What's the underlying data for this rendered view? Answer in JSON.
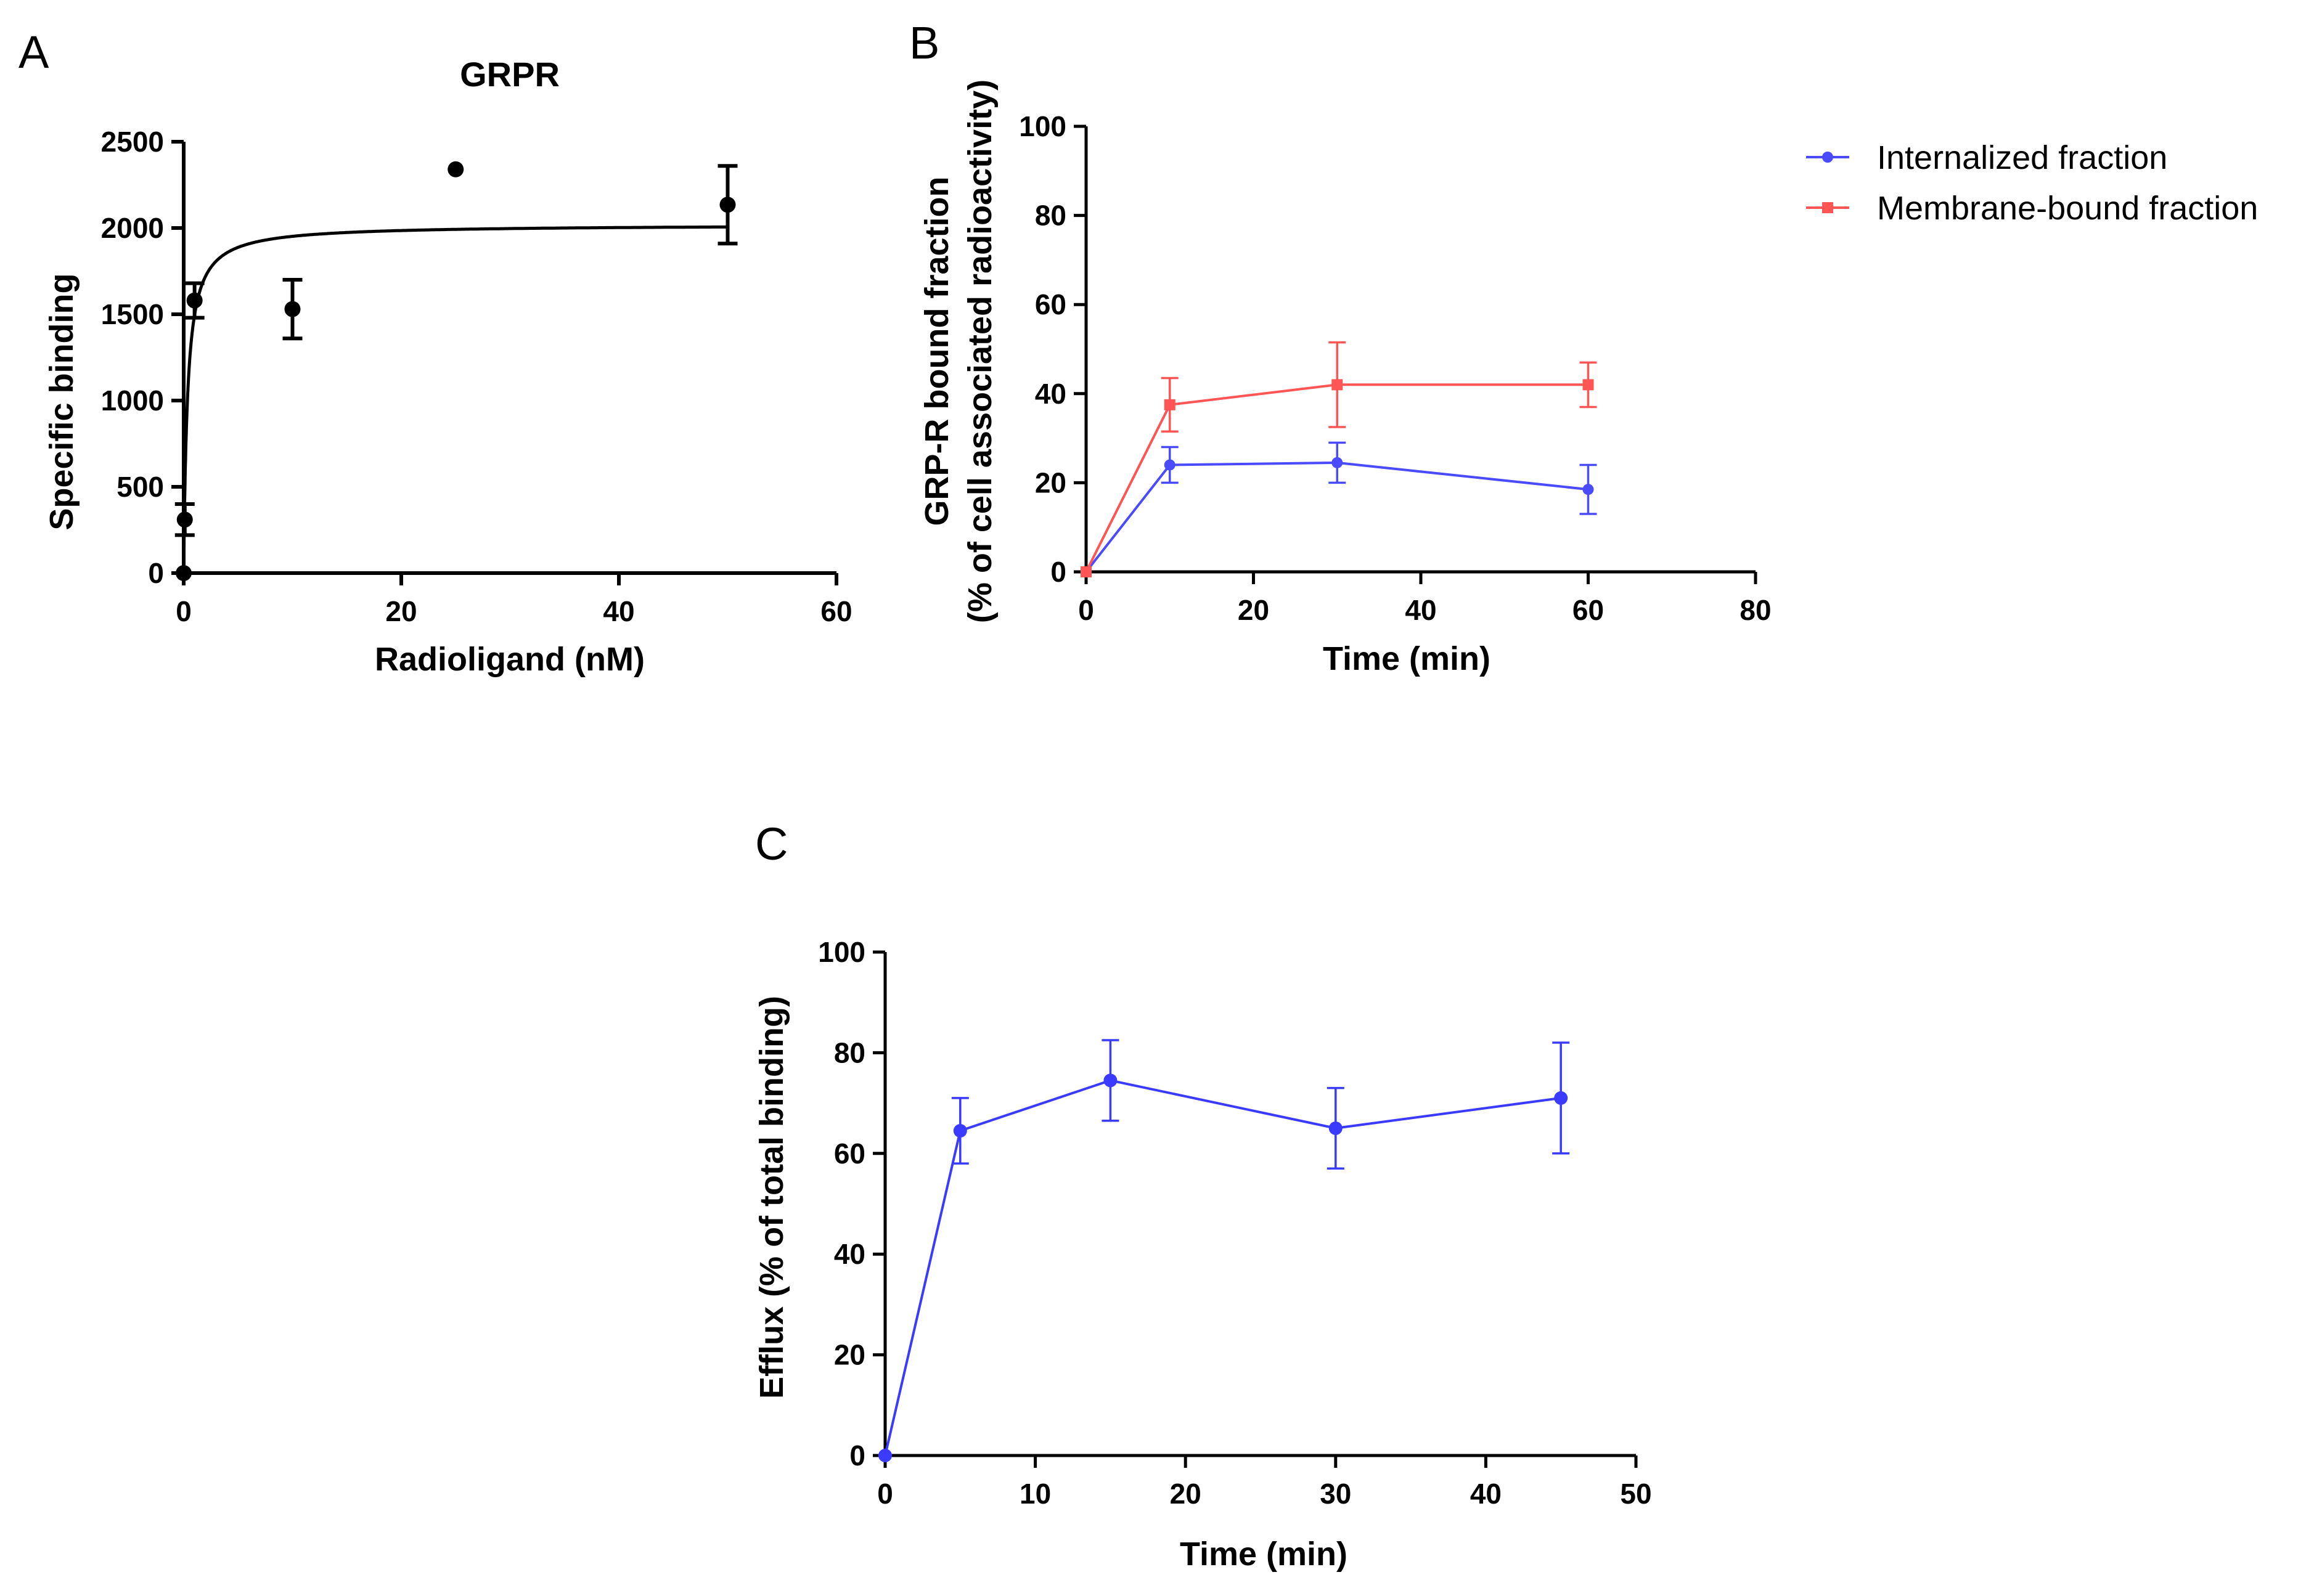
{
  "figure": {
    "panel_labels": [
      "A",
      "B",
      "C"
    ]
  },
  "chart_data": [
    {
      "panel": "A",
      "type": "scatter",
      "title": "GRPR",
      "xlabel": "Radioligand (nM)",
      "ylabel": "Specific binding",
      "xlim": [
        0,
        60
      ],
      "ylim": [
        0,
        2500
      ],
      "xticks": [
        0,
        20,
        40,
        60
      ],
      "yticks": [
        0,
        500,
        1000,
        1500,
        2000,
        2500
      ],
      "grid": false,
      "colors": {
        "series": "#000000"
      },
      "series": [
        {
          "points": [
            {
              "x": 0,
              "y": 0,
              "err": 0
            },
            {
              "x": 0.1,
              "y": 310,
              "err": 90
            },
            {
              "x": 1,
              "y": 1580,
              "err": 100
            },
            {
              "x": 10,
              "y": 1530,
              "err": 170
            },
            {
              "x": 25,
              "y": 2340,
              "err": 0
            },
            {
              "x": 50,
              "y": 2135,
              "err": 225
            }
          ]
        }
      ],
      "fit": {
        "model": "one-site saturation",
        "bmax": 2020,
        "kd": 0.35
      }
    },
    {
      "panel": "B",
      "type": "line",
      "title": "",
      "xlabel": "Time (min)",
      "ylabel": [
        "GRP-R bound fraction",
        "(% of cell associated radioactivity)"
      ],
      "xlim": [
        0,
        80
      ],
      "ylim": [
        0,
        100
      ],
      "xticks": [
        0,
        20,
        40,
        60,
        80
      ],
      "yticks": [
        0,
        20,
        40,
        60,
        80,
        100
      ],
      "grid": false,
      "legend_position": "top-right",
      "series": [
        {
          "name": "Internalized fraction",
          "color": "#4a4aff",
          "marker": "circle",
          "points": [
            {
              "x": 0,
              "y": 0,
              "err": 0
            },
            {
              "x": 10,
              "y": 24,
              "err": 4
            },
            {
              "x": 30,
              "y": 24.5,
              "err": 4.5
            },
            {
              "x": 60,
              "y": 18.5,
              "err": 5.5
            }
          ]
        },
        {
          "name": "Membrane-bound fraction",
          "color": "#ff5555",
          "marker": "square",
          "points": [
            {
              "x": 0,
              "y": 0,
              "err": 0
            },
            {
              "x": 10,
              "y": 37.5,
              "err": 6
            },
            {
              "x": 30,
              "y": 42,
              "err": 9.5
            },
            {
              "x": 60,
              "y": 42,
              "err": 5
            }
          ]
        }
      ]
    },
    {
      "panel": "C",
      "type": "line",
      "title": "",
      "xlabel": "Time (min)",
      "ylabel": "Efflux (% of total binding)",
      "xlim": [
        0,
        50
      ],
      "ylim": [
        0,
        100
      ],
      "xticks": [
        0,
        10,
        20,
        30,
        40,
        50
      ],
      "yticks": [
        0,
        20,
        40,
        60,
        80,
        100
      ],
      "grid": false,
      "series": [
        {
          "color": "#3b3bff",
          "marker": "circle",
          "points": [
            {
              "x": 0,
              "y": 0,
              "err": 0
            },
            {
              "x": 5,
              "y": 64.5,
              "err": 6.5
            },
            {
              "x": 15,
              "y": 74.5,
              "err": 8
            },
            {
              "x": 30,
              "y": 65,
              "err": 8
            },
            {
              "x": 45,
              "y": 71,
              "err": 11
            }
          ]
        }
      ]
    }
  ]
}
